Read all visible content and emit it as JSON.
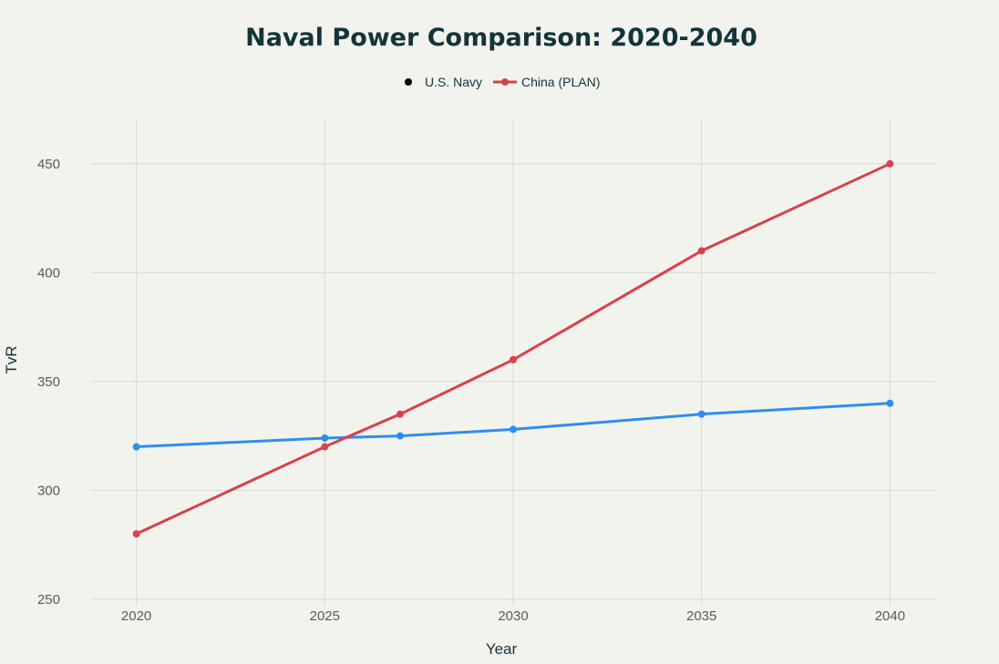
{
  "chart_data": {
    "type": "line",
    "title": "Naval Power Comparison: 2020-2040",
    "xlabel": "Year",
    "ylabel": "TvR",
    "x": [
      2020,
      2025,
      2027,
      2030,
      2035,
      2040
    ],
    "xticks": [
      2020,
      2025,
      2030,
      2035,
      2040
    ],
    "yticks": [
      250,
      300,
      350,
      400,
      450
    ],
    "xlim": [
      2018.8,
      2041.2
    ],
    "ylim": [
      247,
      470
    ],
    "grid": true,
    "legend_position": "top-center",
    "series": [
      {
        "name": "U.S. Navy",
        "color": "#2e8ef0",
        "values": [
          320,
          324,
          325,
          328,
          335,
          340
        ]
      },
      {
        "name": "China (PLAN)",
        "color": "#d9414a",
        "values": [
          280,
          320,
          335,
          360,
          410,
          450
        ]
      }
    ]
  }
}
